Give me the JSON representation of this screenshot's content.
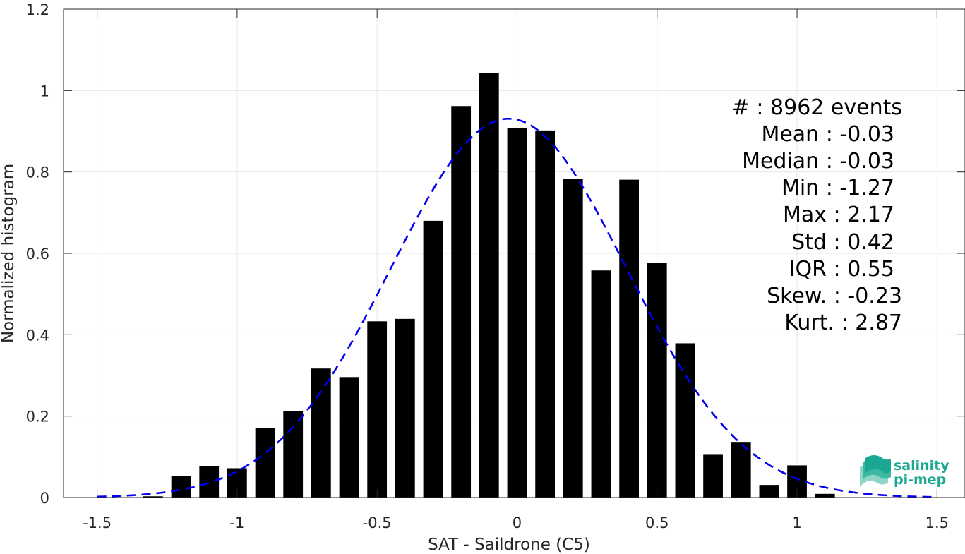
{
  "chart_data": {
    "type": "bar",
    "xlabel": "SAT - Saildrone (C5)",
    "ylabel": "Normalized histogram",
    "xlim": [
      -1.62,
      1.6
    ],
    "ylim": [
      0,
      1.2
    ],
    "xticks": [
      -1.5,
      -1,
      -0.5,
      0,
      0.5,
      1,
      1.5
    ],
    "xtick_labels": [
      "-1.5",
      "-1",
      "-0.5",
      "0",
      "0.5",
      "1",
      "1.5"
    ],
    "yticks": [
      0,
      0.2,
      0.4,
      0.6,
      0.8,
      1,
      1.2
    ],
    "ytick_labels": [
      "0",
      "0.2",
      "0.4",
      "0.6",
      "0.8",
      "1",
      "1.2"
    ],
    "grid": true,
    "bar_width": 0.07,
    "bars": [
      {
        "x": -1.3,
        "y": 0.003
      },
      {
        "x": -1.2,
        "y": 0.053
      },
      {
        "x": -1.1,
        "y": 0.077
      },
      {
        "x": -1.0,
        "y": 0.072
      },
      {
        "x": -0.9,
        "y": 0.17
      },
      {
        "x": -0.8,
        "y": 0.212
      },
      {
        "x": -0.7,
        "y": 0.317
      },
      {
        "x": -0.6,
        "y": 0.296
      },
      {
        "x": -0.5,
        "y": 0.433
      },
      {
        "x": -0.4,
        "y": 0.439
      },
      {
        "x": -0.3,
        "y": 0.68
      },
      {
        "x": -0.2,
        "y": 0.962
      },
      {
        "x": -0.1,
        "y": 1.043
      },
      {
        "x": 0.0,
        "y": 0.908
      },
      {
        "x": 0.1,
        "y": 0.902
      },
      {
        "x": 0.2,
        "y": 0.783
      },
      {
        "x": 0.3,
        "y": 0.558
      },
      {
        "x": 0.4,
        "y": 0.781
      },
      {
        "x": 0.5,
        "y": 0.576
      },
      {
        "x": 0.6,
        "y": 0.379
      },
      {
        "x": 0.7,
        "y": 0.105
      },
      {
        "x": 0.8,
        "y": 0.135
      },
      {
        "x": 0.9,
        "y": 0.031
      },
      {
        "x": 1.0,
        "y": 0.079
      },
      {
        "x": 1.1,
        "y": 0.009
      }
    ],
    "fit_curve": {
      "style": "dashed",
      "color": "#0000ee",
      "mean": -0.03,
      "std": 0.42,
      "x_range": [
        -1.5,
        1.5
      ]
    },
    "bar_color": "#000000",
    "grid_color": "#e6e6e6"
  },
  "stats": [
    {
      "label": "#  : 8962 events"
    },
    {
      "label": "Mean : -0.03"
    },
    {
      "label": "Median : -0.03"
    },
    {
      "label": "Min : -1.27"
    },
    {
      "label": "Max : 2.17"
    },
    {
      "label": "Std : 0.42"
    },
    {
      "label": "IQR : 0.55"
    },
    {
      "label": "Skew. : -0.23"
    },
    {
      "label": "Kurt. : 2.87"
    }
  ],
  "logo": {
    "line1": "salinity",
    "line2": "pi-mep",
    "color": "#1aa892"
  }
}
